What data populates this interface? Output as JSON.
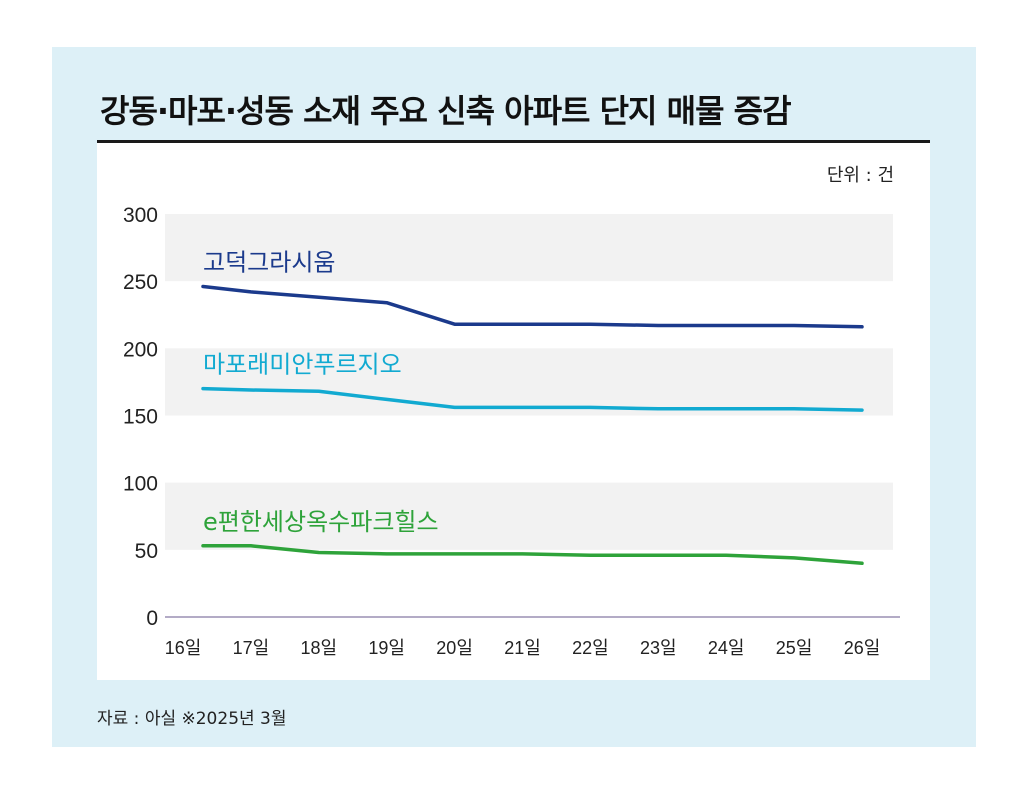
{
  "title": "강동·마포·성동 소재 주요 신축 아파트 단지 매물 증감",
  "unit_label": "단위 : 건",
  "source": "자료 : 아실 ※2025년 3월",
  "colors": {
    "background": "#ddf0f7",
    "band": "#f2f2f2",
    "axis": "#9a8fb3"
  },
  "chart_data": {
    "type": "line",
    "title": "강동·마포·성동 소재 주요 신축 아파트 단지 매물 증감",
    "xlabel": "",
    "ylabel": "",
    "ylim": [
      0,
      300
    ],
    "yticks": [
      0,
      50,
      100,
      150,
      200,
      250,
      300
    ],
    "categories": [
      "16일",
      "17일",
      "18일",
      "19일",
      "20일",
      "21일",
      "22일",
      "23일",
      "24일",
      "25일",
      "26일"
    ],
    "grid": false,
    "legend": "inline labels above lines",
    "series": [
      {
        "name": "고덕그라시움",
        "color": "#1b3a8c",
        "values": [
          246,
          242,
          238,
          234,
          218,
          218,
          218,
          217,
          217,
          217,
          216
        ]
      },
      {
        "name": "마포래미안푸르지오",
        "color": "#12aad1",
        "values": [
          170,
          169,
          168,
          162,
          156,
          156,
          156,
          155,
          155,
          155,
          154
        ]
      },
      {
        "name": "e편한세상옥수파크힐스",
        "color": "#2ea33a",
        "values": [
          53,
          53,
          48,
          47,
          47,
          47,
          46,
          46,
          46,
          44,
          40
        ]
      }
    ]
  }
}
